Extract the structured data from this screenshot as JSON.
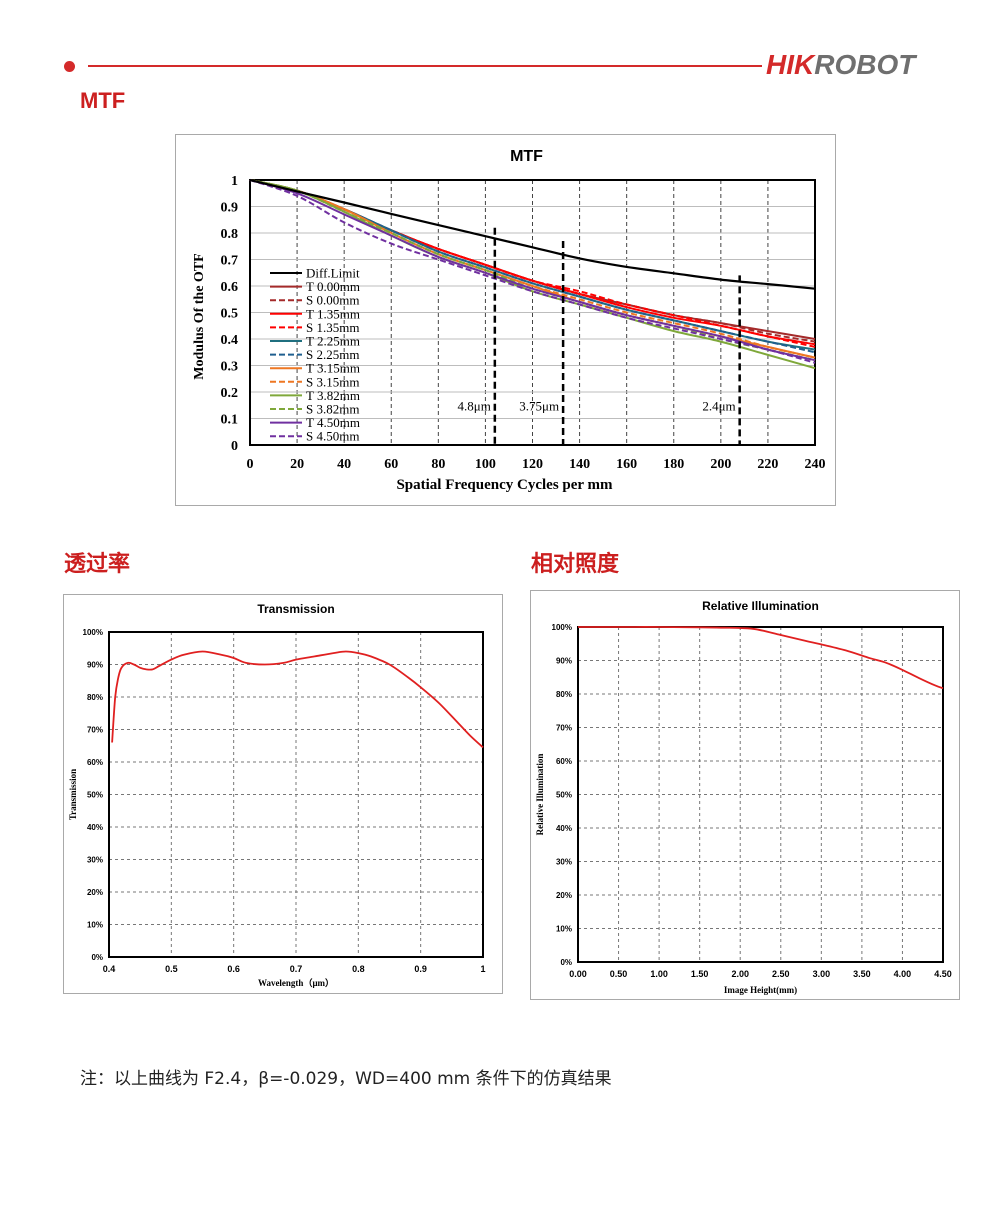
{
  "header": {
    "brand_hik": "HIK",
    "brand_robot": "ROBOT",
    "brand_color": "#d42a2a",
    "brand_secondary_color": "#6f6f6f"
  },
  "sections": {
    "mtf": "MTF",
    "transmission": "透过率",
    "relative_illumination": "相对照度"
  },
  "footnote": "注：以上曲线为 F2.4，β=-0.029，WD=400 mm 条件下的仿真结果",
  "chart_data": [
    {
      "id": "mtf",
      "type": "line",
      "title": "MTF",
      "xlabel": "Spatial Frequency Cycles per mm",
      "ylabel": "Modulus Of  the OTF",
      "xlim": [
        0,
        240
      ],
      "ylim": [
        0,
        1
      ],
      "xticks": [
        0,
        20,
        40,
        60,
        80,
        100,
        120,
        140,
        160,
        180,
        200,
        220,
        240
      ],
      "xtick_labels": [
        "0",
        "20",
        "40",
        "60",
        "80",
        "100",
        "120",
        "140",
        "160",
        "180",
        "200",
        "220",
        "240"
      ],
      "yticks": [
        0,
        0.1,
        0.2,
        0.3,
        0.4,
        0.5,
        0.6,
        0.7,
        0.8,
        0.9,
        1
      ],
      "ytick_labels": [
        "0",
        "0.1",
        "0.2",
        "0.3",
        "0.4",
        "0.5",
        "0.6",
        "0.7",
        "0.8",
        "0.9",
        "1"
      ],
      "grid": "vertical-dashed",
      "legend_position": "lower-left",
      "x": [
        0,
        20,
        40,
        60,
        80,
        100,
        120,
        140,
        160,
        180,
        200,
        220,
        240
      ],
      "series": [
        {
          "name": "Diff.Limit",
          "color": "#000000",
          "dash": false,
          "values": [
            1,
            0.957,
            0.915,
            0.872,
            0.83,
            0.788,
            0.746,
            0.704,
            0.672,
            0.648,
            0.624,
            0.607,
            0.59
          ]
        },
        {
          "name": "T 0.00mm",
          "color": "#a52a2a",
          "dash": false,
          "values": [
            1,
            0.96,
            0.89,
            0.81,
            0.74,
            0.68,
            0.62,
            0.57,
            0.53,
            0.49,
            0.46,
            0.43,
            0.4
          ]
        },
        {
          "name": "S 0.00mm",
          "color": "#a52a2a",
          "dash": true,
          "values": [
            1,
            0.96,
            0.89,
            0.81,
            0.74,
            0.68,
            0.62,
            0.57,
            0.53,
            0.49,
            0.46,
            0.42,
            0.39
          ]
        },
        {
          "name": "T 1.35mm",
          "color": "#ff0000",
          "dash": false,
          "values": [
            1,
            0.96,
            0.89,
            0.81,
            0.74,
            0.68,
            0.62,
            0.57,
            0.52,
            0.48,
            0.45,
            0.41,
            0.38
          ]
        },
        {
          "name": "S 1.35mm",
          "color": "#ff0000",
          "dash": true,
          "values": [
            1,
            0.96,
            0.89,
            0.81,
            0.74,
            0.68,
            0.62,
            0.58,
            0.53,
            0.49,
            0.45,
            0.41,
            0.37
          ]
        },
        {
          "name": "T 2.25mm",
          "color": "#1f6f7f",
          "dash": false,
          "values": [
            1,
            0.96,
            0.89,
            0.81,
            0.73,
            0.67,
            0.61,
            0.56,
            0.51,
            0.47,
            0.43,
            0.39,
            0.36
          ]
        },
        {
          "name": "S 2.25mm",
          "color": "#1f5f8f",
          "dash": true,
          "values": [
            1,
            0.96,
            0.89,
            0.81,
            0.73,
            0.67,
            0.61,
            0.56,
            0.51,
            0.47,
            0.43,
            0.39,
            0.35
          ]
        },
        {
          "name": "T 3.15mm",
          "color": "#ee7722",
          "dash": false,
          "values": [
            1,
            0.96,
            0.89,
            0.8,
            0.72,
            0.66,
            0.6,
            0.54,
            0.49,
            0.45,
            0.41,
            0.37,
            0.33
          ]
        },
        {
          "name": "S 3.15mm",
          "color": "#ee7722",
          "dash": true,
          "values": [
            1,
            0.96,
            0.89,
            0.8,
            0.72,
            0.66,
            0.6,
            0.55,
            0.5,
            0.46,
            0.42,
            0.37,
            0.33
          ]
        },
        {
          "name": "T 3.82mm",
          "color": "#7fa83a",
          "dash": false,
          "values": [
            1,
            0.96,
            0.88,
            0.79,
            0.71,
            0.65,
            0.58,
            0.53,
            0.48,
            0.43,
            0.39,
            0.34,
            0.29
          ]
        },
        {
          "name": "S 3.82mm",
          "color": "#7fa83a",
          "dash": true,
          "values": [
            1,
            0.96,
            0.88,
            0.8,
            0.72,
            0.66,
            0.59,
            0.54,
            0.49,
            0.45,
            0.4,
            0.36,
            0.32
          ]
        },
        {
          "name": "T 4.50mm",
          "color": "#7030a0",
          "dash": false,
          "values": [
            1,
            0.95,
            0.87,
            0.79,
            0.71,
            0.65,
            0.59,
            0.54,
            0.49,
            0.45,
            0.41,
            0.36,
            0.32
          ]
        },
        {
          "name": "S 4.50mm",
          "color": "#7030a0",
          "dash": true,
          "values": [
            1,
            0.94,
            0.84,
            0.76,
            0.7,
            0.64,
            0.58,
            0.53,
            0.48,
            0.44,
            0.4,
            0.36,
            0.31
          ]
        }
      ],
      "annotations": [
        {
          "x": 104,
          "y_top": 0.82,
          "label": "4.8μm"
        },
        {
          "x": 133,
          "y_top": 0.77,
          "label": "3.75μm"
        },
        {
          "x": 208,
          "y_top": 0.64,
          "label": "2.4μm"
        }
      ]
    },
    {
      "id": "transmission",
      "type": "line",
      "title": "Transmission",
      "xlabel": "Wavelength（μm）",
      "ylabel": "Transmission",
      "xlim": [
        0.4,
        1
      ],
      "ylim": [
        0,
        100
      ],
      "xticks": [
        0.4,
        0.5,
        0.6,
        0.7,
        0.8,
        0.9,
        1
      ],
      "xtick_labels": [
        "0.4",
        "0.5",
        "0.6",
        "0.7",
        "0.8",
        "0.9",
        "1"
      ],
      "yticks": [
        0,
        10,
        20,
        30,
        40,
        50,
        60,
        70,
        80,
        90,
        100
      ],
      "ytick_labels": [
        "0%",
        "10%",
        "20%",
        "30%",
        "40%",
        "50%",
        "60%",
        "70%",
        "80%",
        "90%",
        "100%"
      ],
      "grid": "dashed",
      "series": [
        {
          "color": "#e02020",
          "x": [
            0.405,
            0.41,
            0.415,
            0.42,
            0.43,
            0.44,
            0.45,
            0.46,
            0.47,
            0.48,
            0.5,
            0.52,
            0.55,
            0.58,
            0.6,
            0.62,
            0.65,
            0.68,
            0.7,
            0.73,
            0.76,
            0.78,
            0.8,
            0.82,
            0.85,
            0.88,
            0.9,
            0.93,
            0.96,
            0.98,
            1.0
          ],
          "values": [
            66,
            80,
            86,
            89,
            90.5,
            90,
            89,
            88.5,
            88.5,
            89.5,
            91.5,
            93,
            94,
            93,
            92,
            90.5,
            90,
            90.5,
            91.5,
            92.5,
            93.5,
            94,
            93.5,
            92.5,
            90,
            86,
            83,
            78,
            72,
            68,
            64.5
          ]
        }
      ]
    },
    {
      "id": "relative_illumination",
      "type": "line",
      "title": "Relative Illumination",
      "xlabel": "Image Height(mm)",
      "ylabel": "Relative Illumination",
      "xlim": [
        0,
        4.5
      ],
      "ylim": [
        0,
        100
      ],
      "xticks": [
        0,
        0.5,
        1,
        1.5,
        2,
        2.5,
        3,
        3.5,
        4,
        4.5
      ],
      "xtick_labels": [
        "0.00",
        "0.50",
        "1.00",
        "1.50",
        "2.00",
        "2.50",
        "3.00",
        "3.50",
        "4.00",
        "4.50"
      ],
      "yticks": [
        0,
        10,
        20,
        30,
        40,
        50,
        60,
        70,
        80,
        90,
        100
      ],
      "ytick_labels": [
        "0%",
        "10%",
        "20%",
        "30%",
        "40%",
        "50%",
        "60%",
        "70%",
        "80%",
        "90%",
        "100%"
      ],
      "grid": "dashed",
      "series": [
        {
          "color": "#e02020",
          "x": [
            0,
            0.5,
            1.0,
            1.5,
            1.8,
            2.0,
            2.2,
            2.5,
            2.8,
            3.0,
            3.3,
            3.6,
            3.8,
            4.0,
            4.2,
            4.4,
            4.5
          ],
          "values": [
            100,
            100,
            100,
            99.9,
            99.8,
            99.7,
            99.3,
            97.6,
            95.9,
            94.8,
            93,
            90.7,
            89.3,
            87.2,
            84.8,
            82.6,
            81.7
          ]
        }
      ]
    }
  ]
}
